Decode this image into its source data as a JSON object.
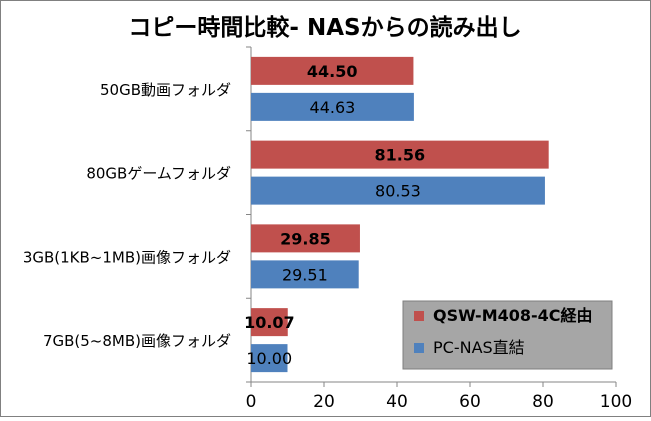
{
  "chart_data": {
    "type": "bar",
    "orientation": "horizontal",
    "title": "コピー時間比較- NASからの読み出し",
    "categories": [
      "50GB動画フォルダ",
      "80GBゲームフォルダ",
      "3GB(1KB~1MB)画像フォルダ",
      "7GB(5~8MB)画像フォルダ"
    ],
    "series": [
      {
        "name": "QSW-M408-4C経由",
        "values": [
          44.5,
          81.56,
          29.85,
          10.07
        ],
        "labels": [
          "44.50",
          "81.56",
          "29.85",
          "10.07"
        ],
        "color": "#c0504d",
        "label_bold": true
      },
      {
        "name": "PC-NAS直結",
        "values": [
          44.63,
          80.53,
          29.51,
          10.0
        ],
        "labels": [
          "44.63",
          "80.53",
          "29.51",
          "10.00"
        ],
        "color": "#4f81bd",
        "label_bold": false
      }
    ],
    "xlim": [
      0,
      100
    ],
    "xticks": [
      "0",
      "20",
      "40",
      "60",
      "80",
      "100"
    ],
    "grid": false,
    "legend_position": "bottom-right",
    "legend_background": "#a6a6a6"
  }
}
